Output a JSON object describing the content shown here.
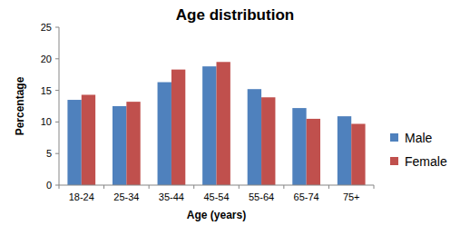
{
  "chart_data": {
    "type": "bar",
    "title": "Age distribution",
    "x_label": "Age (years)",
    "y_label": "Percentage",
    "categories": [
      "18-24",
      "25-34",
      "35-44",
      "45-54",
      "55-64",
      "65-74",
      "75+"
    ],
    "series": [
      {
        "name": "Male",
        "color": "#4f81bd",
        "values": [
          13.5,
          12.5,
          16.3,
          18.8,
          15.2,
          12.2,
          10.9
        ]
      },
      {
        "name": "Female",
        "color": "#c0504d",
        "values": [
          14.3,
          13.2,
          18.3,
          19.5,
          13.9,
          10.5,
          9.7
        ]
      }
    ],
    "ylim": [
      0,
      25
    ],
    "yticks": [
      0,
      5,
      10,
      15,
      20,
      25
    ],
    "grid": false,
    "legend": "right"
  }
}
